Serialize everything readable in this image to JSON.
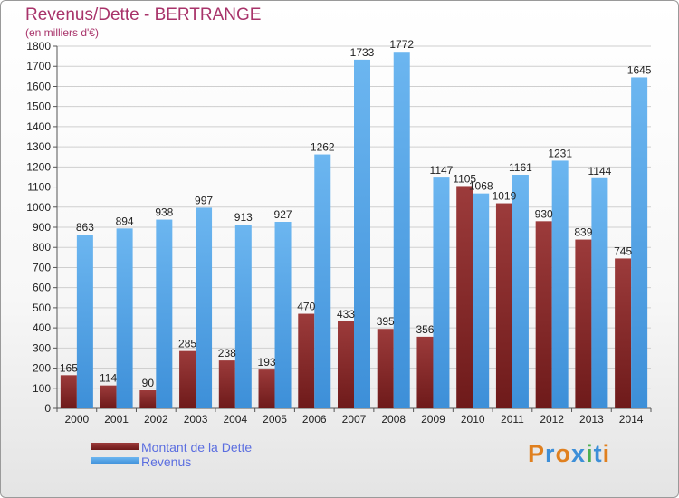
{
  "title": "Revenus/Dette - BERTRANGE",
  "subtitle": "(en milliers d'€)",
  "logo_text": "Proxiti",
  "colors": {
    "debt": "#6e1a1a",
    "debt_light": "#9c3b3b",
    "revenue": "#3d8fd8",
    "revenue_light": "#6cb6f0",
    "title": "#a8336a",
    "legend_text": "#5b6ee0",
    "grid": "#cfcfcf"
  },
  "chart_data": {
    "type": "bar",
    "title": "Revenus/Dette - BERTRANGE",
    "subtitle": "(en milliers d'€)",
    "categories": [
      "2000",
      "2001",
      "2002",
      "2003",
      "2004",
      "2005",
      "2006",
      "2007",
      "2008",
      "2009",
      "2010",
      "2011",
      "2012",
      "2013",
      "2014"
    ],
    "series": [
      {
        "name": "Montant de la Dette",
        "values": [
          165,
          114,
          90,
          285,
          238,
          193,
          470,
          433,
          395,
          356,
          1105,
          1019,
          930,
          839,
          745
        ]
      },
      {
        "name": "Revenus",
        "values": [
          863,
          894,
          938,
          997,
          913,
          927,
          1262,
          1733,
          1772,
          1147,
          1068,
          1161,
          1231,
          1144,
          1645
        ]
      }
    ],
    "ylim": [
      0,
      1800
    ],
    "yticks": [
      0,
      100,
      200,
      300,
      400,
      500,
      600,
      700,
      800,
      900,
      1000,
      1100,
      1200,
      1300,
      1400,
      1500,
      1600,
      1700,
      1800
    ],
    "grid": true,
    "legend_position": "bottom-left"
  }
}
